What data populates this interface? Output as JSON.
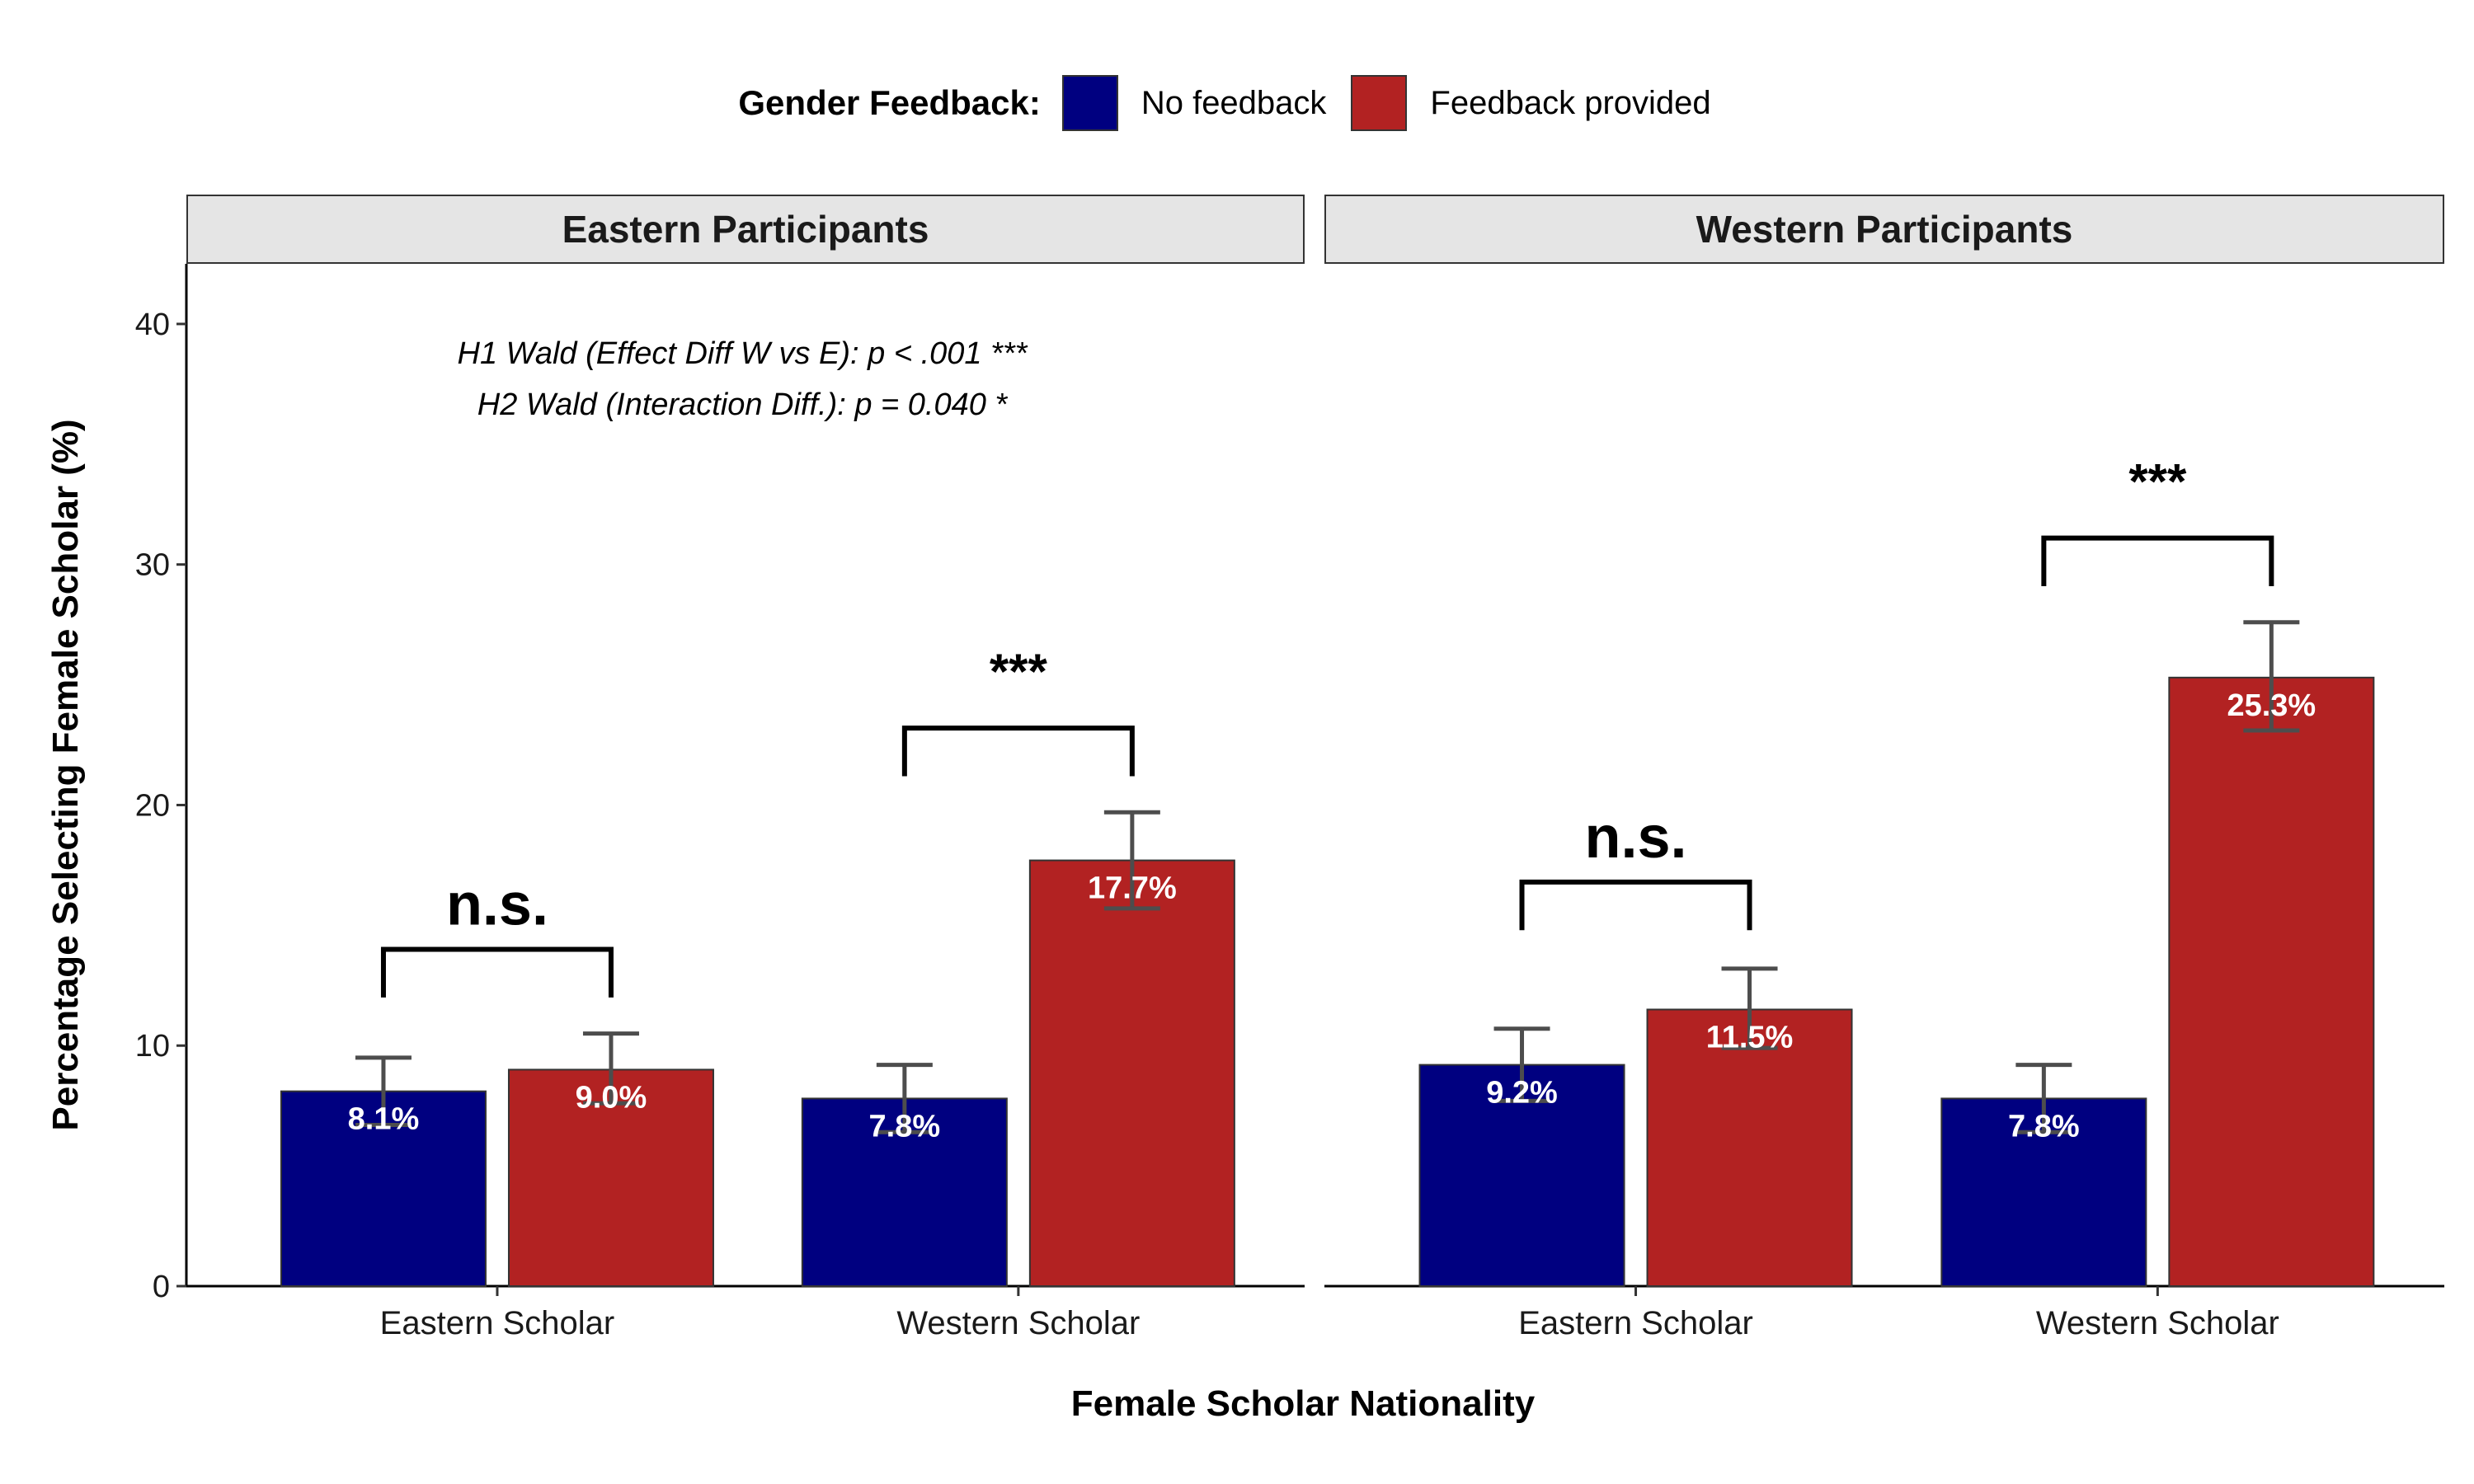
{
  "legend": {
    "title": "Gender Feedback:",
    "items": [
      {
        "label": "No feedback",
        "color": "#000080"
      },
      {
        "label": "Feedback provided",
        "color": "#B22222"
      }
    ]
  },
  "chart_data": {
    "type": "bar",
    "xlabel": "Female Scholar Nationality",
    "ylabel": "Percentage Selecting Female Scholar (%)",
    "ylim": [
      0,
      42.5
    ],
    "yticks": [
      0,
      10,
      20,
      30,
      40
    ],
    "categories": [
      "Eastern Scholar",
      "Western Scholar"
    ],
    "series_colors": {
      "No feedback": "#000080",
      "Feedback provided": "#B22222"
    },
    "annotation": [
      "H1 Wald (Effect Diff W vs E): p < .001 ***",
      "H2 Wald (Interaction Diff.): p = 0.040 *"
    ],
    "panels": [
      {
        "title": "Eastern Participants",
        "groups": [
          {
            "category": "Eastern Scholar",
            "bars": [
              {
                "series": "No feedback",
                "value": 8.1,
                "label": "8.1%",
                "err_low": 6.7,
                "err_high": 9.5
              },
              {
                "series": "Feedback provided",
                "value": 9.0,
                "label": "9.0%",
                "err_low": 7.6,
                "err_high": 10.5
              }
            ],
            "significance": {
              "label": "n.s.",
              "y": 14.0,
              "tick_bottom": 12.0
            }
          },
          {
            "category": "Western Scholar",
            "bars": [
              {
                "series": "No feedback",
                "value": 7.8,
                "label": "7.8%",
                "err_low": 6.4,
                "err_high": 9.2
              },
              {
                "series": "Feedback provided",
                "value": 17.7,
                "label": "17.7%",
                "err_low": 15.7,
                "err_high": 19.7
              }
            ],
            "significance": {
              "label": "***",
              "y": 23.2,
              "tick_bottom": 21.2
            }
          }
        ]
      },
      {
        "title": "Western Participants",
        "groups": [
          {
            "category": "Eastern Scholar",
            "bars": [
              {
                "series": "No feedback",
                "value": 9.2,
                "label": "9.2%",
                "err_low": 7.7,
                "err_high": 10.7
              },
              {
                "series": "Feedback provided",
                "value": 11.5,
                "label": "11.5%",
                "err_low": 9.9,
                "err_high": 13.2
              }
            ],
            "significance": {
              "label": "n.s.",
              "y": 16.8,
              "tick_bottom": 14.8
            }
          },
          {
            "category": "Western Scholar",
            "bars": [
              {
                "series": "No feedback",
                "value": 7.8,
                "label": "7.8%",
                "err_low": 6.4,
                "err_high": 9.2
              },
              {
                "series": "Feedback provided",
                "value": 25.3,
                "label": "25.3%",
                "err_low": 23.1,
                "err_high": 27.6
              }
            ],
            "significance": {
              "label": "***",
              "y": 31.1,
              "tick_bottom": 29.1
            }
          }
        ]
      }
    ]
  }
}
